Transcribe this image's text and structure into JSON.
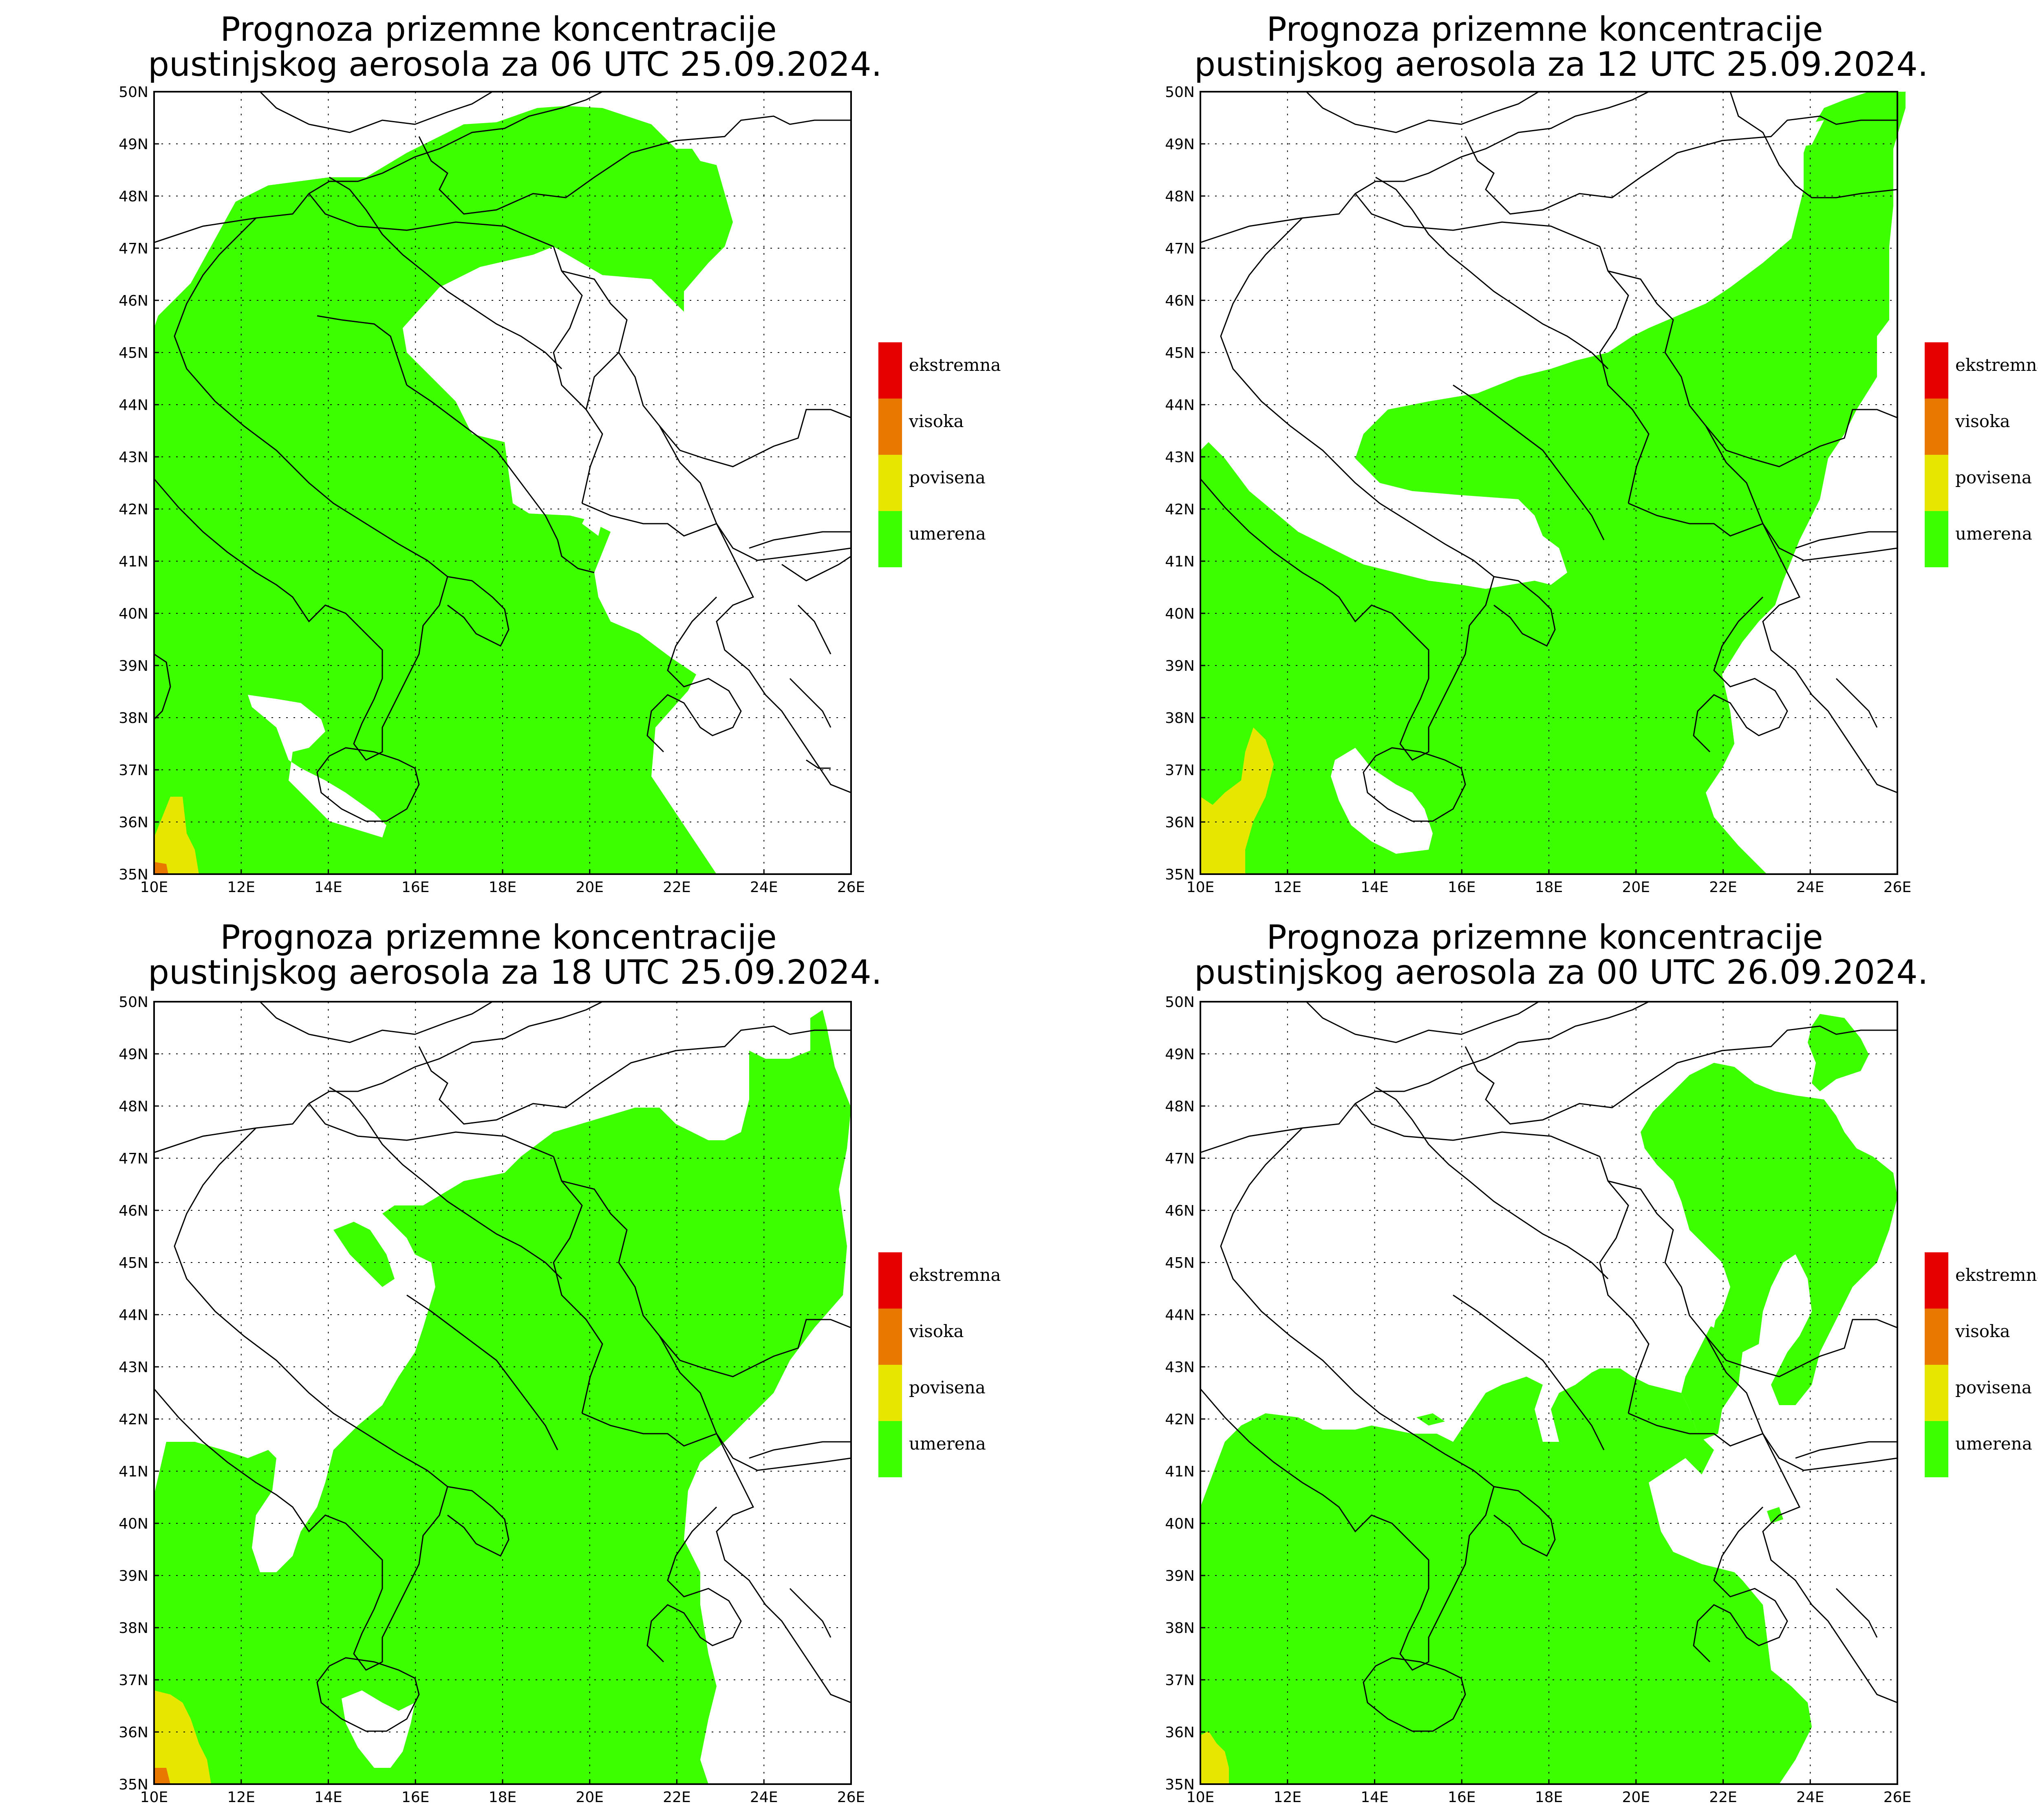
{
  "panels": [
    {
      "title_line1": "Prognoza prizemne koncentracije",
      "title_line2": "pustinjskog aerosola za 06 UTC 25.09.2024."
    },
    {
      "title_line1": "Prognoza prizemne koncentracije",
      "title_line2": "pustinjskog aerosola za 12 UTC 25.09.2024."
    },
    {
      "title_line1": "Prognoza prizemne koncentracije",
      "title_line2": "pustinjskog aerosola za 18 UTC 25.09.2024."
    },
    {
      "title_line1": "Prognoza prizemne koncentracije",
      "title_line2": "pustinjskog aerosola za 00 UTC 26.09.2024."
    }
  ],
  "lat_ticks": [
    "50N",
    "49N",
    "48N",
    "47N",
    "46N",
    "45N",
    "44N",
    "43N",
    "42N",
    "41N",
    "40N",
    "39N",
    "38N",
    "37N",
    "36N",
    "35N"
  ],
  "lon_ticks": [
    "10E",
    "12E",
    "14E",
    "16E",
    "18E",
    "20E",
    "22E",
    "24E",
    "26E"
  ],
  "legend": [
    {
      "label": "ekstremna",
      "color": "#e60000"
    },
    {
      "label": "visoka",
      "color": "#e87800"
    },
    {
      "label": "povisena",
      "color": "#e6e600"
    },
    {
      "label": "umerena",
      "color": "#3cff00"
    }
  ],
  "colors": {
    "moderate": "#3cff00",
    "elevated": "#e6e600",
    "high": "#e87800",
    "extreme": "#e60000"
  }
}
